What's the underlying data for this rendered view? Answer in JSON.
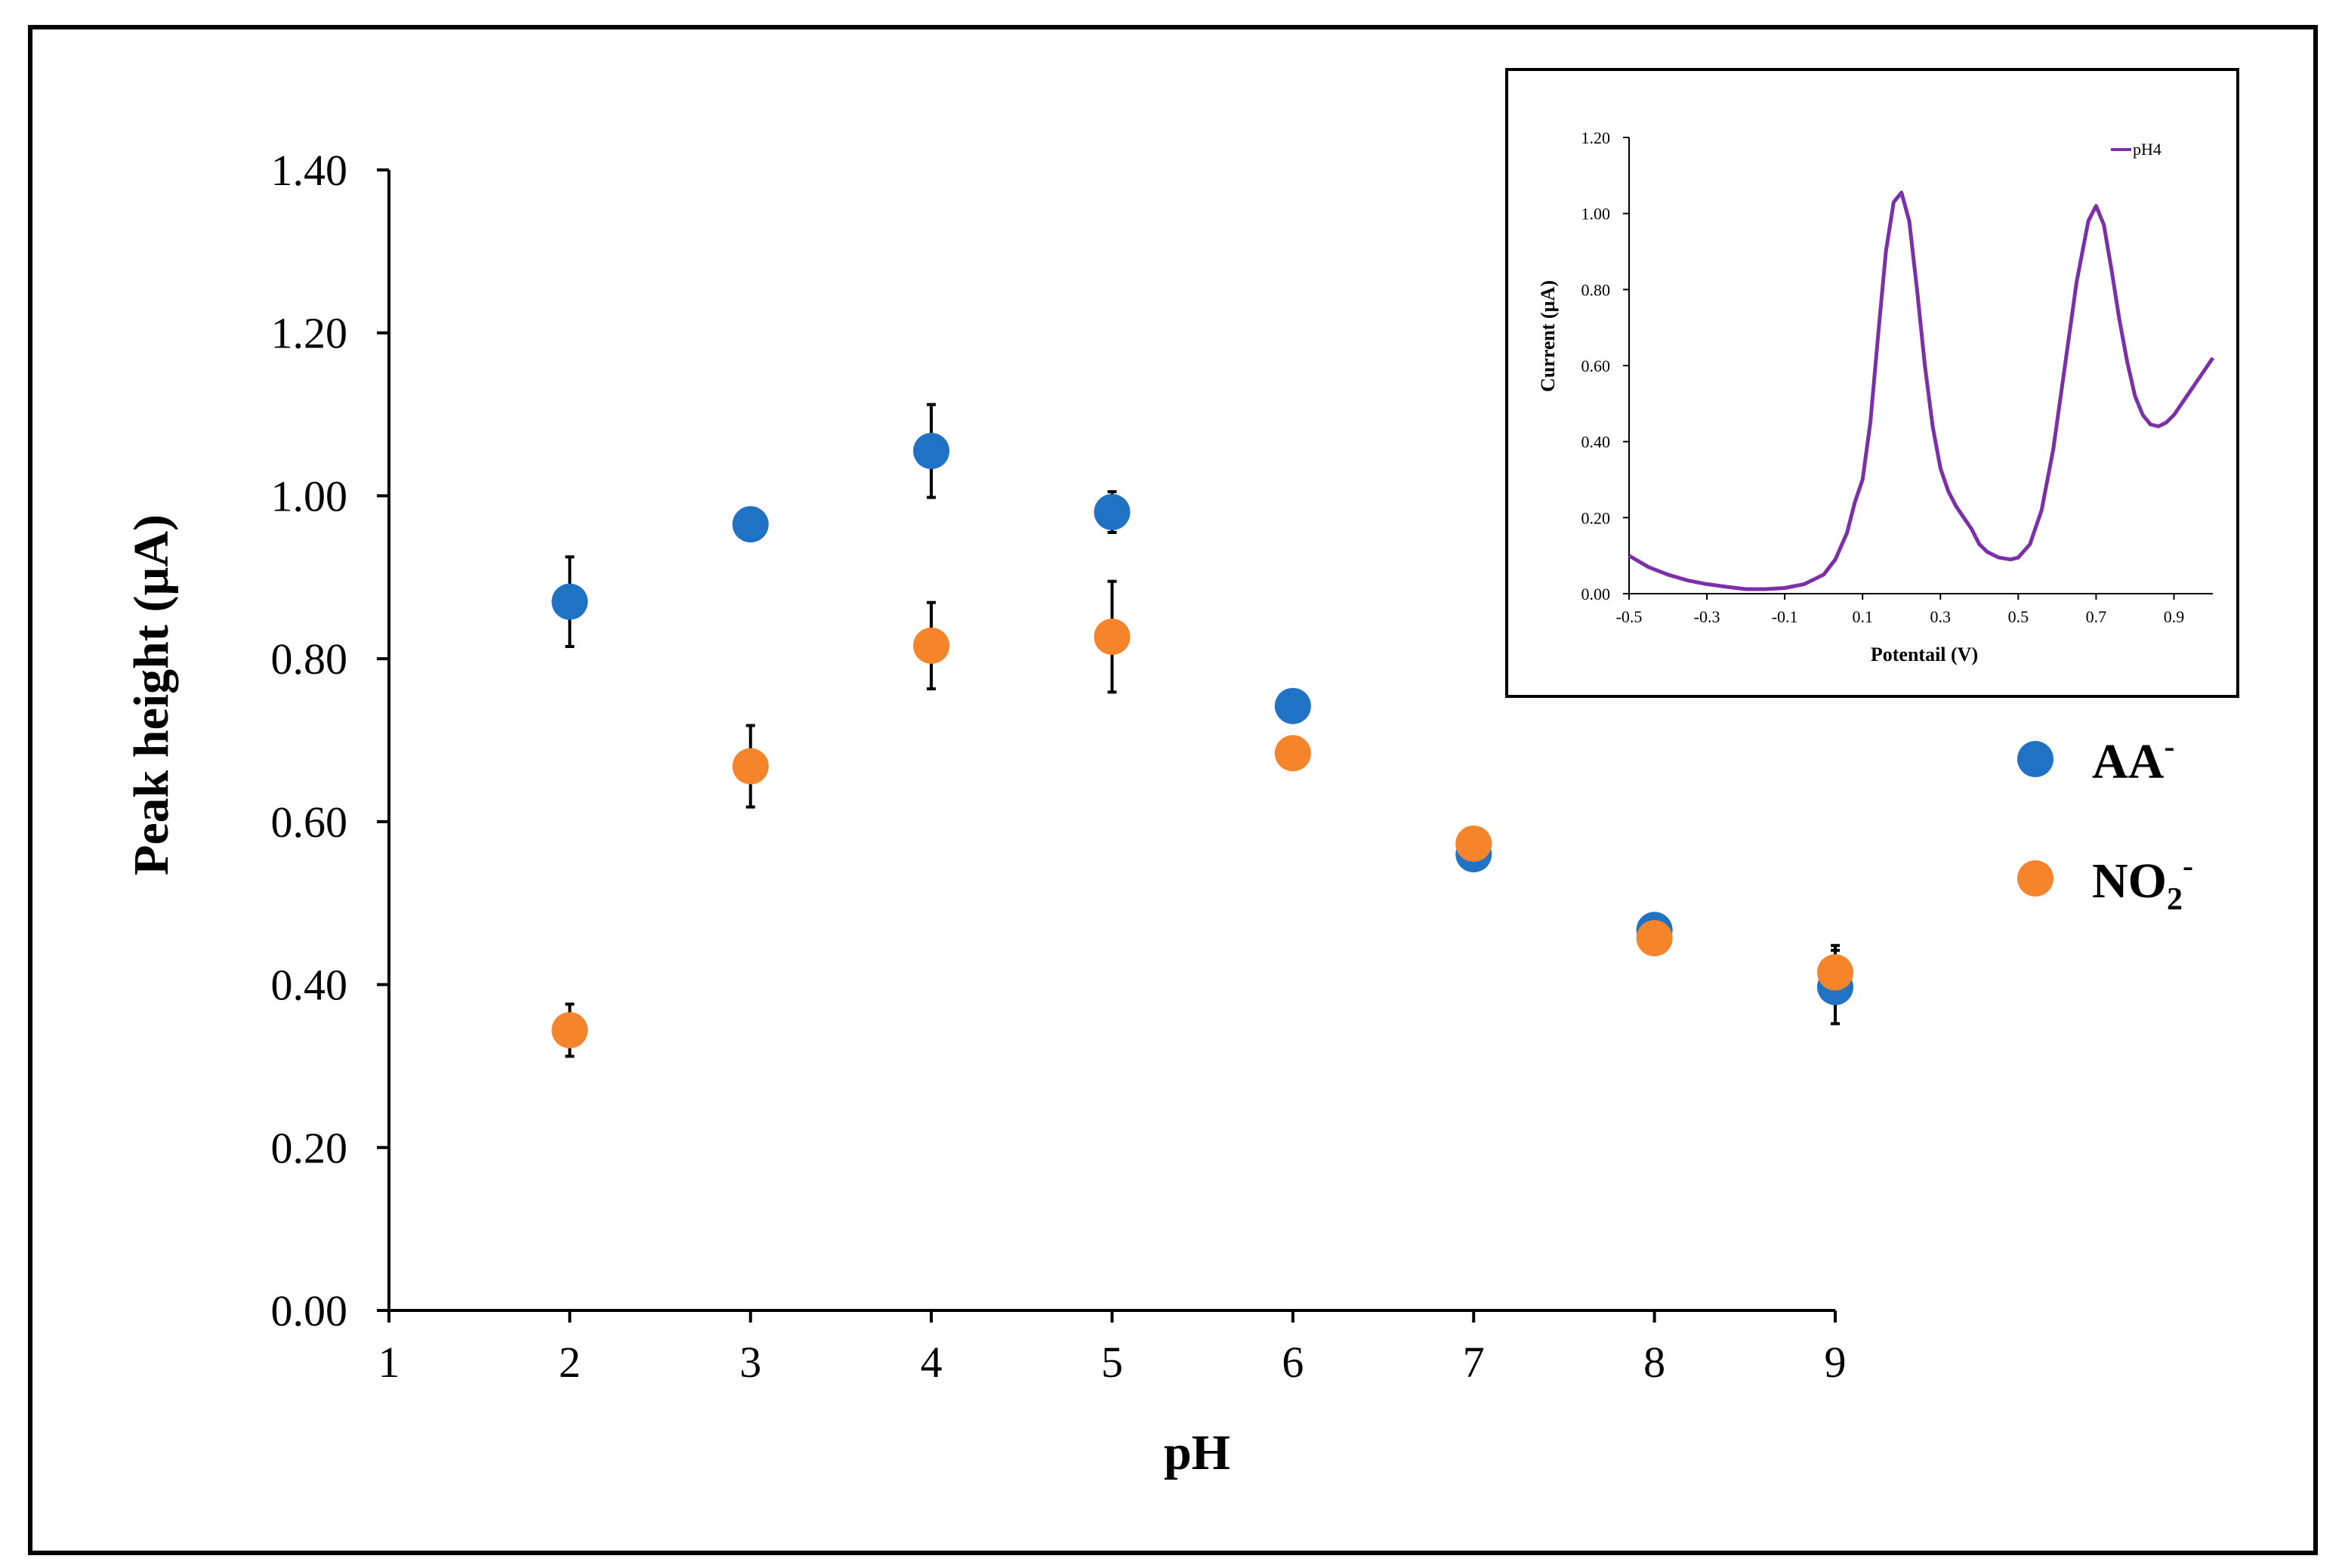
{
  "chart_data": [
    {
      "type": "scatter",
      "title": "",
      "xlabel": "pH",
      "ylabel": "Peak height (µA)",
      "xlim": [
        1,
        9
      ],
      "ylim": [
        0,
        1.4
      ],
      "x_ticks": [
        "1",
        "2",
        "3",
        "4",
        "5",
        "6",
        "7",
        "8",
        "9"
      ],
      "y_ticks": [
        "0.00",
        "0.20",
        "0.40",
        "0.60",
        "0.80",
        "1.00",
        "1.20",
        "1.40"
      ],
      "grid": false,
      "legend_position": "right",
      "series": [
        {
          "name": "AA",
          "name_sup": "-",
          "color": "#1f72c4",
          "x": [
            2,
            3,
            4,
            5,
            6,
            7,
            8,
            9
          ],
          "y": [
            0.87,
            0.965,
            1.055,
            0.98,
            0.742,
            0.56,
            0.467,
            0.397
          ],
          "error": [
            0.055,
            0.0,
            0.057,
            0.025,
            0.015,
            0.0,
            0.01,
            0.045
          ]
        },
        {
          "name": "NO",
          "name_sub": "2",
          "name_sup": "-",
          "color": "#f5842a",
          "x": [
            2,
            3,
            4,
            5,
            6,
            7,
            8,
            9
          ],
          "y": [
            0.344,
            0.668,
            0.816,
            0.827,
            0.684,
            0.573,
            0.457,
            0.415
          ],
          "error": [
            0.032,
            0.05,
            0.053,
            0.068,
            0.0,
            0.0,
            0.0,
            0.033
          ]
        }
      ]
    },
    {
      "type": "line",
      "title": "",
      "xlabel": "Potentail (V)",
      "ylabel": "Current (µA)",
      "xlim": [
        -0.5,
        1.0
      ],
      "ylim": [
        0,
        1.2
      ],
      "x_ticks": [
        "-0.5",
        "-0.3",
        "-0.1",
        "0.1",
        "0.3",
        "0.5",
        "0.7",
        "0.9"
      ],
      "y_ticks": [
        "0.00",
        "0.20",
        "0.40",
        "0.60",
        "0.80",
        "1.00",
        "1.20"
      ],
      "legend_position": "top-right",
      "series": [
        {
          "name": "pH4",
          "color": "#7b2fa8",
          "x": [
            -0.5,
            -0.45,
            -0.4,
            -0.35,
            -0.3,
            -0.25,
            -0.2,
            -0.15,
            -0.1,
            -0.05,
            0.0,
            0.03,
            0.06,
            0.08,
            0.1,
            0.12,
            0.14,
            0.16,
            0.18,
            0.2,
            0.22,
            0.24,
            0.26,
            0.28,
            0.3,
            0.32,
            0.34,
            0.36,
            0.38,
            0.4,
            0.42,
            0.45,
            0.48,
            0.5,
            0.53,
            0.56,
            0.59,
            0.62,
            0.65,
            0.68,
            0.7,
            0.72,
            0.74,
            0.76,
            0.78,
            0.8,
            0.82,
            0.84,
            0.86,
            0.88,
            0.9,
            0.92,
            0.94,
            0.96,
            0.98,
            1.0
          ],
          "y": [
            0.1,
            0.07,
            0.05,
            0.035,
            0.025,
            0.018,
            0.012,
            0.012,
            0.015,
            0.025,
            0.05,
            0.09,
            0.16,
            0.24,
            0.3,
            0.45,
            0.68,
            0.9,
            1.03,
            1.055,
            0.98,
            0.8,
            0.6,
            0.44,
            0.33,
            0.27,
            0.23,
            0.2,
            0.17,
            0.13,
            0.11,
            0.095,
            0.09,
            0.095,
            0.13,
            0.22,
            0.38,
            0.6,
            0.82,
            0.98,
            1.02,
            0.97,
            0.85,
            0.72,
            0.61,
            0.52,
            0.47,
            0.445,
            0.44,
            0.45,
            0.47,
            0.5,
            0.53,
            0.56,
            0.59,
            0.62
          ]
        }
      ]
    }
  ]
}
